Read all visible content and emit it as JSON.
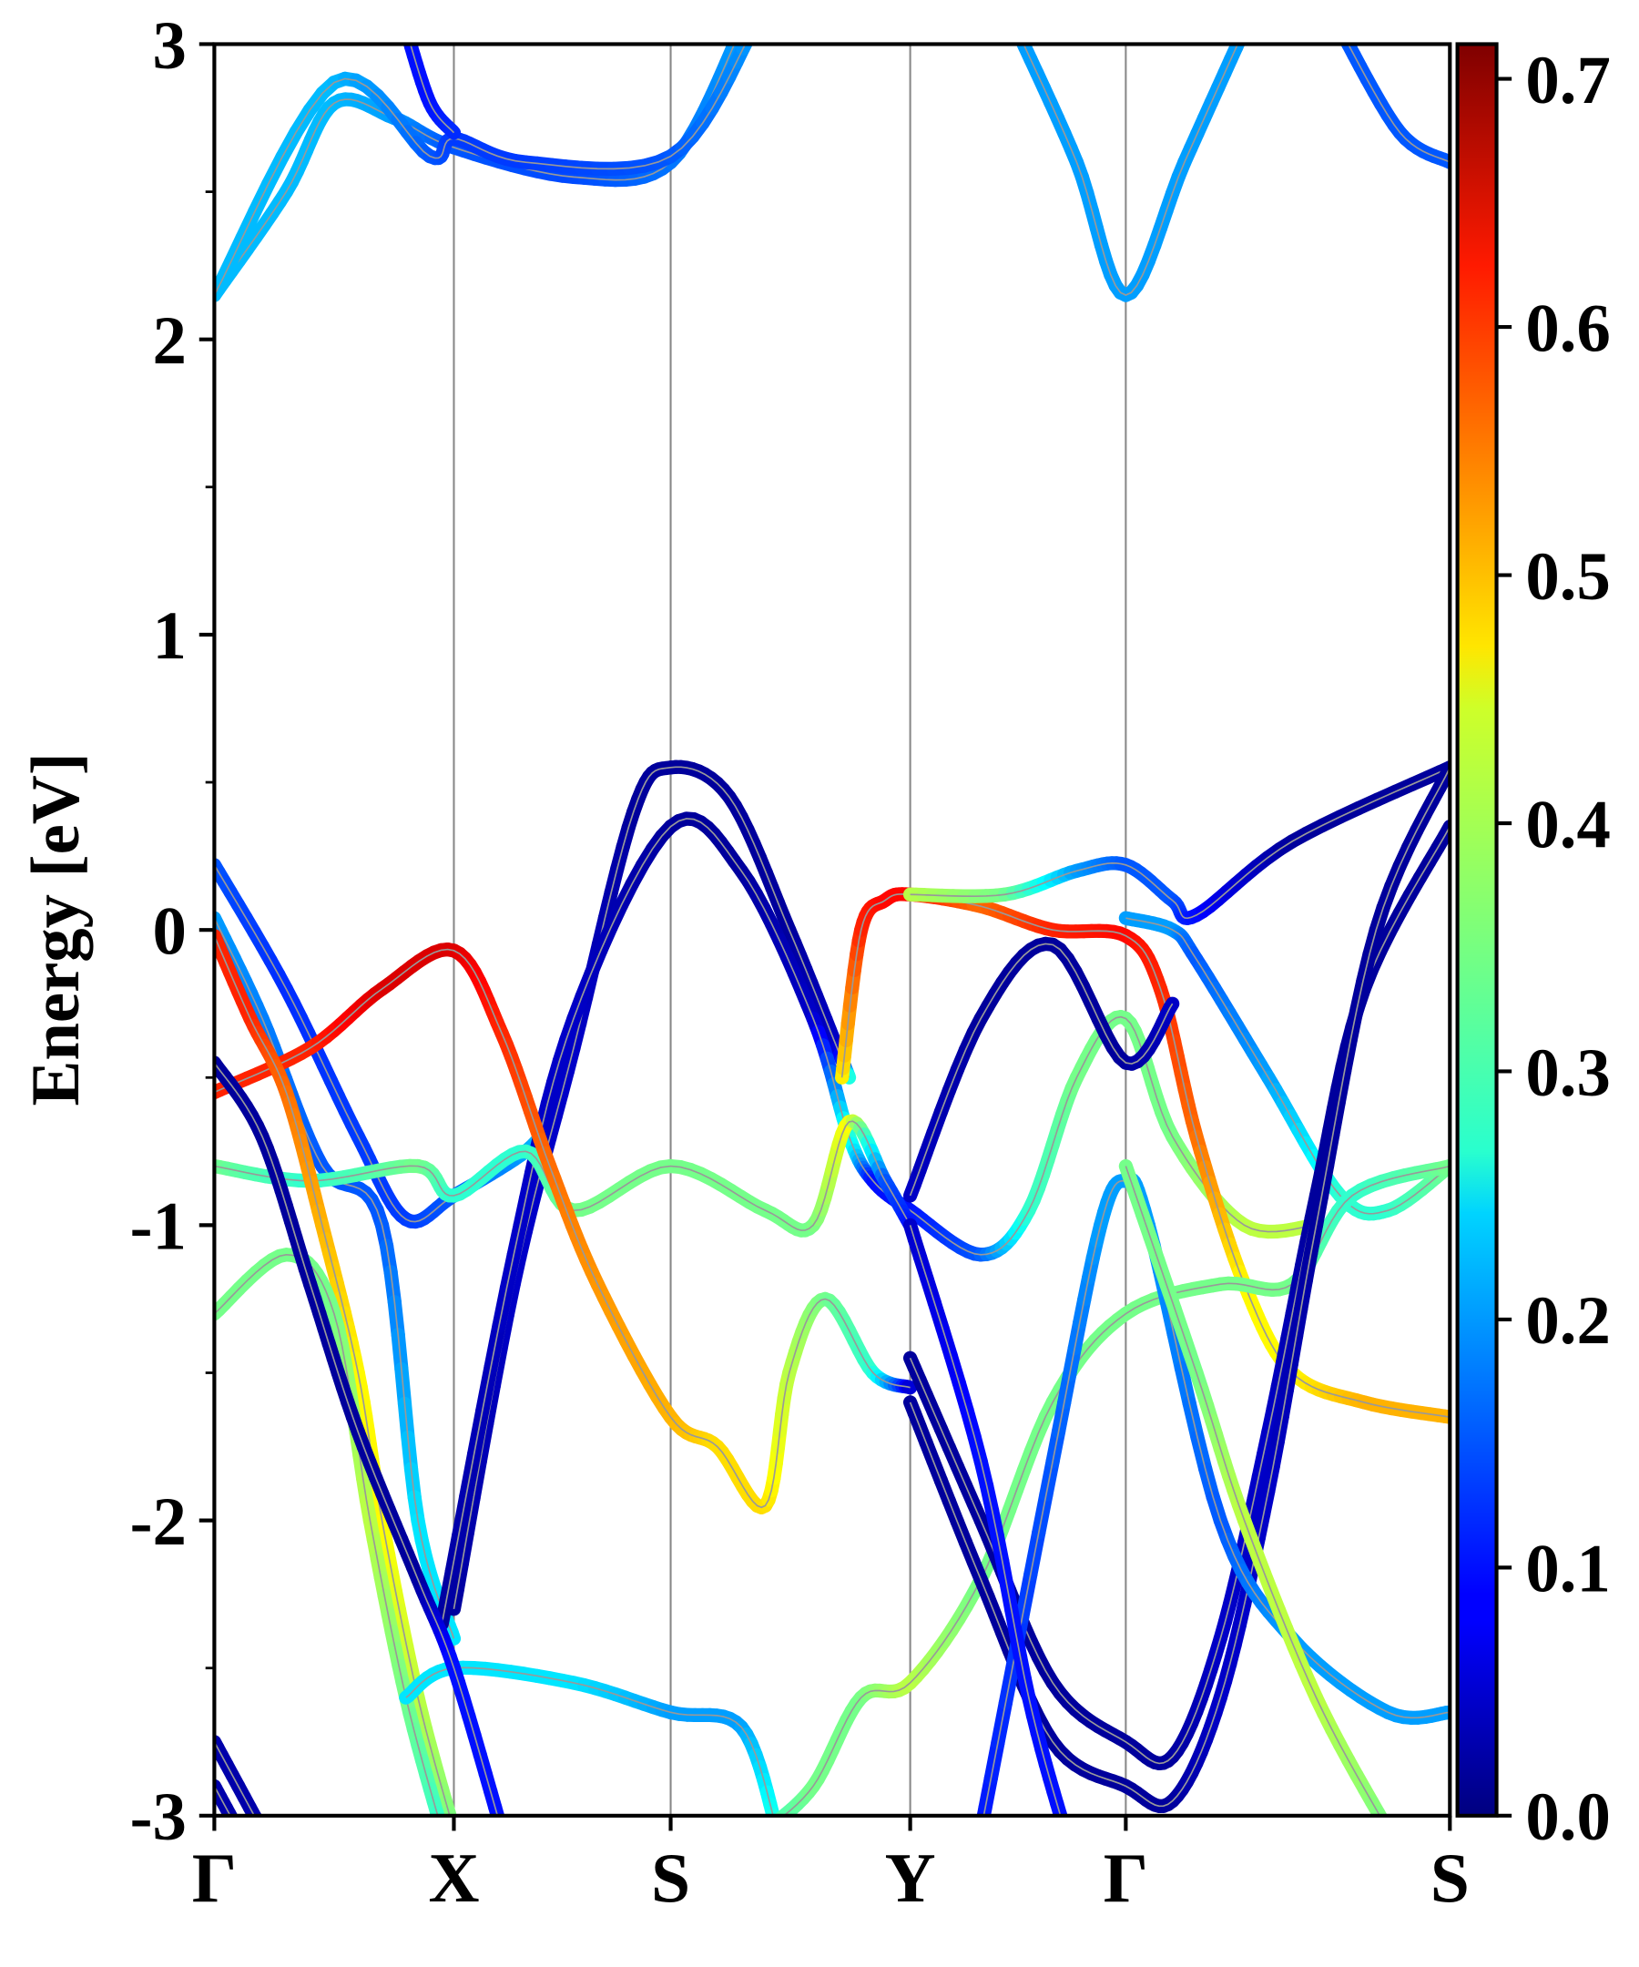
{
  "chart_data": {
    "type": "line",
    "title": "",
    "xlabel": "",
    "ylabel": "Energy [eV]",
    "ylim": [
      -3,
      3
    ],
    "yticks": [
      "-3",
      "-2",
      "-1",
      "0",
      "1",
      "2",
      "3"
    ],
    "ytick_values": [
      -3,
      -2,
      -1,
      0,
      1,
      2,
      3
    ],
    "kpoints": [
      {
        "label": "Γ",
        "k": 0
      },
      {
        "label": "X",
        "k": 1.0
      },
      {
        "label": "S",
        "k": 1.905
      },
      {
        "label": "Y",
        "k": 2.905
      },
      {
        "label": "Γ",
        "k": 3.805
      },
      {
        "label": "S",
        "k": 5.158
      }
    ],
    "xlim": [
      0,
      5.158
    ],
    "colorbar": {
      "colormap": "jet",
      "range": [
        0,
        0.714
      ],
      "ticks": [
        "0.0",
        "0.1",
        "0.2",
        "0.3",
        "0.4",
        "0.5",
        "0.6",
        "0.7"
      ],
      "tick_values": [
        0,
        0.1,
        0.2,
        0.3,
        0.4,
        0.5,
        0.6,
        0.7
      ]
    },
    "bands_format": "[k, energy_eV, weight]",
    "bands": [
      [
        [
          0,
          2.15,
          0.22
        ],
        [
          0.3,
          2.5,
          0.22
        ],
        [
          0.5,
          2.8,
          0.22
        ],
        [
          0.75,
          2.75,
          0.2
        ],
        [
          1.0,
          2.65,
          0.15
        ],
        [
          1.5,
          2.55,
          0.14
        ],
        [
          1.905,
          2.6,
          0.17
        ],
        [
          2.2,
          3.05,
          0.2
        ]
      ],
      [
        [
          0,
          2.15,
          0.22
        ],
        [
          0.5,
          2.87,
          0.22
        ],
        [
          0.9,
          2.62,
          0.15
        ],
        [
          1.0,
          2.68,
          0.13
        ],
        [
          1.3,
          2.6,
          0.13
        ],
        [
          1.905,
          2.62,
          0.15
        ],
        [
          2.25,
          3.05,
          0.2
        ]
      ],
      [
        [
          0.8,
          3.05,
          0.1
        ],
        [
          0.9,
          2.8,
          0.1
        ],
        [
          1.0,
          2.7,
          0.12
        ]
      ],
      [
        [
          3.35,
          3.05,
          0.2
        ],
        [
          3.6,
          2.6,
          0.2
        ],
        [
          3.805,
          2.15,
          0.2
        ],
        [
          4.05,
          2.6,
          0.2
        ],
        [
          4.3,
          3.05,
          0.2
        ]
      ],
      [
        [
          4.7,
          3.05,
          0.15
        ],
        [
          4.95,
          2.7,
          0.15
        ],
        [
          5.158,
          2.6,
          0.15
        ]
      ],
      [
        [
          0,
          0.22,
          0.15
        ],
        [
          0.3,
          -0.2,
          0.12
        ],
        [
          0.6,
          -0.7,
          0.13
        ],
        [
          0.8,
          -0.98,
          0.13
        ],
        [
          1.0,
          -0.9,
          0.15
        ],
        [
          1.3,
          -0.75,
          0.2
        ],
        [
          1.4,
          -0.65,
          0.25
        ]
      ],
      [
        [
          0,
          0.04,
          0.2
        ],
        [
          0.2,
          -0.3,
          0.18
        ],
        [
          0.45,
          -0.8,
          0.15
        ],
        [
          0.7,
          -1.0,
          0.15
        ],
        [
          0.85,
          -2.0,
          0.25
        ],
        [
          1.0,
          -2.4,
          0.25
        ]
      ],
      [
        [
          1.0,
          -2.3,
          0.02
        ],
        [
          1.25,
          -1.2,
          0.05
        ],
        [
          1.5,
          -0.4,
          0.05
        ],
        [
          1.75,
          0.4,
          0.02
        ],
        [
          1.905,
          0.55,
          0.02
        ],
        [
          2.15,
          0.45,
          0.02
        ],
        [
          2.4,
          0.0,
          0.02
        ],
        [
          2.6,
          -0.4,
          0.05
        ],
        [
          2.65,
          -0.5,
          0.3
        ]
      ],
      [
        [
          0.95,
          -2.35,
          0.02
        ],
        [
          1.25,
          -1.1,
          0.05
        ],
        [
          1.5,
          -0.3,
          0.05
        ],
        [
          1.905,
          0.35,
          0.02
        ],
        [
          2.2,
          0.2,
          0.02
        ],
        [
          2.5,
          -0.3,
          0.05
        ],
        [
          2.65,
          -0.7,
          0.3
        ],
        [
          2.75,
          -0.85,
          0.1
        ],
        [
          2.905,
          -0.95,
          0.1
        ],
        [
          3.2,
          -1.1,
          0.15
        ],
        [
          3.4,
          -0.95,
          0.3
        ],
        [
          3.6,
          -0.5,
          0.35
        ],
        [
          3.805,
          -0.3,
          0.35
        ],
        [
          4.0,
          -0.7,
          0.35
        ],
        [
          4.3,
          -1.0,
          0.4
        ],
        [
          4.6,
          -1.0,
          0.4
        ]
      ],
      [
        [
          2.62,
          -0.5,
          0.45
        ],
        [
          2.7,
          0.0,
          0.6
        ],
        [
          2.8,
          0.1,
          0.62
        ],
        [
          2.905,
          0.12,
          0.62
        ],
        [
          3.2,
          0.08,
          0.55
        ],
        [
          3.5,
          0.0,
          0.6
        ],
        [
          3.805,
          -0.02,
          0.62
        ],
        [
          3.95,
          -0.2,
          0.6
        ],
        [
          4.1,
          -0.7,
          0.55
        ],
        [
          4.3,
          -1.2,
          0.45
        ],
        [
          4.5,
          -1.5,
          0.45
        ],
        [
          4.8,
          -1.6,
          0.5
        ],
        [
          5.158,
          -1.65,
          0.5
        ]
      ],
      [
        [
          2.905,
          0.12,
          0.4
        ],
        [
          3.3,
          0.12,
          0.35
        ],
        [
          3.6,
          0.2,
          0.2
        ],
        [
          3.805,
          0.22,
          0.15
        ],
        [
          4.0,
          0.1,
          0.15
        ],
        [
          4.1,
          0.05,
          0.1
        ],
        [
          4.5,
          0.3,
          0.02
        ],
        [
          5.158,
          0.55,
          0.02
        ]
      ],
      [
        [
          3.805,
          0.04,
          0.2
        ],
        [
          4.0,
          0.0,
          0.2
        ],
        [
          4.1,
          -0.1,
          0.15
        ],
        [
          4.4,
          -0.5,
          0.2
        ],
        [
          4.7,
          -0.9,
          0.3
        ],
        [
          4.9,
          -0.95,
          0.3
        ],
        [
          5.158,
          -0.8,
          0.35
        ]
      ],
      [
        [
          0,
          -0.8,
          0.35
        ],
        [
          0.4,
          -0.85,
          0.3
        ],
        [
          0.85,
          -0.8,
          0.35
        ],
        [
          1.0,
          -0.9,
          0.3
        ],
        [
          1.3,
          -0.75,
          0.3
        ],
        [
          1.5,
          -0.95,
          0.35
        ],
        [
          1.905,
          -0.8,
          0.35
        ],
        [
          2.3,
          -0.95,
          0.35
        ],
        [
          2.5,
          -1.0,
          0.35
        ],
        [
          2.65,
          -0.65,
          0.45
        ],
        [
          2.8,
          -0.85,
          0.15
        ],
        [
          2.905,
          -1.0,
          0.1
        ]
      ],
      [
        [
          0,
          -0.55,
          0.6
        ],
        [
          0.4,
          -0.4,
          0.6
        ],
        [
          0.7,
          -0.2,
          0.65
        ],
        [
          1.0,
          -0.07,
          0.65
        ],
        [
          1.2,
          -0.35,
          0.6
        ],
        [
          1.4,
          -0.8,
          0.55
        ],
        [
          1.6,
          -1.2,
          0.52
        ],
        [
          1.905,
          -1.65,
          0.5
        ],
        [
          2.1,
          -1.75,
          0.47
        ],
        [
          2.3,
          -1.95,
          0.47
        ],
        [
          2.4,
          -1.5,
          0.4
        ],
        [
          2.55,
          -1.25,
          0.35
        ],
        [
          2.75,
          -1.5,
          0.3
        ],
        [
          2.905,
          -1.55,
          0.05
        ]
      ],
      [
        [
          0,
          -0.02,
          0.6
        ],
        [
          0.15,
          -0.3,
          0.6
        ],
        [
          0.3,
          -0.55,
          0.55
        ],
        [
          0.45,
          -1.0,
          0.5
        ],
        [
          0.6,
          -1.5,
          0.45
        ],
        [
          0.7,
          -2.0,
          0.45
        ],
        [
          0.85,
          -2.6,
          0.4
        ],
        [
          1.0,
          -3.05,
          0.35
        ]
      ],
      [
        [
          0,
          -1.3,
          0.35
        ],
        [
          0.3,
          -1.1,
          0.35
        ],
        [
          0.5,
          -1.3,
          0.35
        ],
        [
          0.65,
          -2.0,
          0.4
        ],
        [
          0.8,
          -2.6,
          0.35
        ],
        [
          0.95,
          -3.05,
          0.3
        ]
      ],
      [
        [
          0.8,
          -2.6,
          0.25
        ],
        [
          1.0,
          -2.5,
          0.25
        ],
        [
          1.5,
          -2.55,
          0.25
        ],
        [
          1.905,
          -2.65,
          0.2
        ],
        [
          2.2,
          -2.7,
          0.2
        ],
        [
          2.35,
          -3.05,
          0.3
        ]
      ],
      [
        [
          2.3,
          -3.05,
          0.3
        ],
        [
          2.5,
          -2.9,
          0.35
        ],
        [
          2.7,
          -2.6,
          0.35
        ],
        [
          2.905,
          -2.55,
          0.4
        ],
        [
          3.2,
          -2.2,
          0.35
        ],
        [
          3.5,
          -1.6,
          0.35
        ],
        [
          3.805,
          -1.3,
          0.35
        ],
        [
          4.2,
          -1.2,
          0.35
        ],
        [
          4.5,
          -1.2,
          0.35
        ],
        [
          4.75,
          -0.9,
          0.3
        ],
        [
          5.158,
          -0.8,
          0.35
        ]
      ],
      [
        [
          2.905,
          -1.45,
          0.02
        ],
        [
          3.2,
          -2.0,
          0.02
        ],
        [
          3.5,
          -2.55,
          0.02
        ],
        [
          3.805,
          -2.75,
          0.02
        ],
        [
          4.0,
          -2.8,
          0.02
        ],
        [
          4.2,
          -2.4,
          0.05
        ],
        [
          4.4,
          -1.7,
          0.05
        ],
        [
          4.6,
          -0.9,
          0.02
        ],
        [
          4.8,
          -0.2,
          0.02
        ],
        [
          5.158,
          0.35,
          0.02
        ]
      ],
      [
        [
          2.905,
          -1.6,
          0.02
        ],
        [
          3.2,
          -2.2,
          0.02
        ],
        [
          3.5,
          -2.75,
          0.02
        ],
        [
          3.805,
          -2.9,
          0.02
        ],
        [
          4.0,
          -2.95,
          0.02
        ],
        [
          4.2,
          -2.6,
          0.05
        ],
        [
          4.4,
          -1.9,
          0.05
        ],
        [
          4.6,
          -1.0,
          0.02
        ],
        [
          4.85,
          0.0,
          0.02
        ],
        [
          5.158,
          0.55,
          0.02
        ]
      ],
      [
        [
          0,
          -0.45,
          0.02
        ],
        [
          0.2,
          -0.7,
          0.02
        ],
        [
          0.4,
          -1.2,
          0.02
        ],
        [
          0.6,
          -1.7,
          0.02
        ],
        [
          0.85,
          -2.2,
          0.02
        ],
        [
          1.0,
          -2.5,
          0.1
        ],
        [
          1.2,
          -3.05,
          0.1
        ]
      ],
      [
        [
          0,
          -2.75,
          0.03
        ],
        [
          0.2,
          -3.05,
          0.03
        ]
      ],
      [
        [
          0,
          -2.9,
          0.03
        ],
        [
          0.1,
          -3.05,
          0.03
        ]
      ],
      [
        [
          2.905,
          -0.9,
          0.05
        ],
        [
          3.2,
          -0.3,
          0.02
        ],
        [
          3.5,
          -0.05,
          0.02
        ],
        [
          3.805,
          -0.45,
          0.02
        ],
        [
          4.0,
          -0.25,
          0.05
        ]
      ],
      [
        [
          3.2,
          -3.05,
          0.1
        ],
        [
          3.5,
          -1.8,
          0.15
        ],
        [
          3.7,
          -1.0,
          0.2
        ],
        [
          3.805,
          -0.85,
          0.2
        ],
        [
          3.9,
          -1.0,
          0.2
        ],
        [
          4.2,
          -2.0,
          0.15
        ],
        [
          4.5,
          -2.4,
          0.2
        ],
        [
          4.9,
          -2.65,
          0.2
        ],
        [
          5.158,
          -2.65,
          0.2
        ]
      ],
      [
        [
          3.805,
          -0.8,
          0.35
        ],
        [
          4.1,
          -1.5,
          0.35
        ],
        [
          4.3,
          -2.0,
          0.4
        ],
        [
          4.6,
          -2.6,
          0.4
        ],
        [
          4.9,
          -3.05,
          0.35
        ]
      ],
      [
        [
          2.905,
          -1.0,
          0.05
        ],
        [
          3.2,
          -1.8,
          0.1
        ],
        [
          3.4,
          -2.6,
          0.1
        ],
        [
          3.55,
          -3.05,
          0.1
        ]
      ]
    ]
  }
}
